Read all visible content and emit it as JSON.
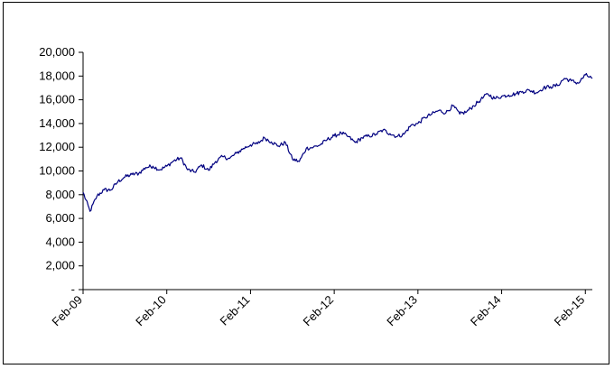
{
  "chart_data": {
    "type": "line",
    "title": "",
    "xlabel": "",
    "ylabel": "",
    "grid": false,
    "legend": "none",
    "xlim": [
      "2009-02",
      "2015-03"
    ],
    "ylim": [
      0,
      20000
    ],
    "y_ticks": [
      0,
      2000,
      4000,
      6000,
      8000,
      10000,
      12000,
      14000,
      16000,
      18000,
      20000
    ],
    "y_tick_labels": [
      "-",
      "2,000",
      "4,000",
      "6,000",
      "8,000",
      "10,000",
      "12,000",
      "14,000",
      "16,000",
      "18,000",
      "20,000"
    ],
    "x_ticks": [
      "2009-02",
      "2010-02",
      "2011-02",
      "2012-02",
      "2013-02",
      "2014-02",
      "2015-02"
    ],
    "x_tick_labels": [
      "Feb-09",
      "Feb-10",
      "Feb-11",
      "Feb-12",
      "Feb-13",
      "Feb-14",
      "Feb-15"
    ],
    "series": [
      {
        "color": "#000080",
        "x": [
          "2009-02",
          "2009-03",
          "2009-04",
          "2009-05",
          "2009-06",
          "2009-07",
          "2009-08",
          "2009-09",
          "2009-10",
          "2009-11",
          "2009-12",
          "2010-01",
          "2010-02",
          "2010-03",
          "2010-04",
          "2010-05",
          "2010-06",
          "2010-07",
          "2010-08",
          "2010-09",
          "2010-10",
          "2010-11",
          "2010-12",
          "2011-01",
          "2011-02",
          "2011-03",
          "2011-04",
          "2011-05",
          "2011-06",
          "2011-07",
          "2011-08",
          "2011-09",
          "2011-10",
          "2011-11",
          "2011-12",
          "2012-01",
          "2012-02",
          "2012-03",
          "2012-04",
          "2012-05",
          "2012-06",
          "2012-07",
          "2012-08",
          "2012-09",
          "2012-10",
          "2012-11",
          "2012-12",
          "2013-01",
          "2013-02",
          "2013-03",
          "2013-04",
          "2013-05",
          "2013-06",
          "2013-07",
          "2013-08",
          "2013-09",
          "2013-10",
          "2013-11",
          "2013-12",
          "2014-01",
          "2014-02",
          "2014-03",
          "2014-04",
          "2014-05",
          "2014-06",
          "2014-07",
          "2014-08",
          "2014-09",
          "2014-10",
          "2014-11",
          "2014-12",
          "2015-01",
          "2015-02",
          "2015-03"
        ],
        "values": [
          8200,
          6600,
          7900,
          8400,
          8400,
          9100,
          9500,
          9700,
          9800,
          10300,
          10400,
          10100,
          10400,
          10850,
          11100,
          10100,
          9900,
          10500,
          10050,
          10800,
          11200,
          11050,
          11500,
          11900,
          12200,
          12300,
          12800,
          12450,
          12100,
          12400,
          11000,
          10800,
          11900,
          12000,
          12200,
          12650,
          12950,
          13200,
          12900,
          12400,
          12800,
          12950,
          13100,
          13450,
          13150,
          12900,
          13100,
          13850,
          14000,
          14500,
          14800,
          15100,
          14900,
          15500,
          14800,
          15000,
          15500,
          16000,
          16500,
          16100,
          16300,
          16400,
          16500,
          16700,
          16800,
          16600,
          17000,
          17100,
          17200,
          17800,
          17600,
          17400,
          18100,
          17800
        ]
      }
    ]
  }
}
